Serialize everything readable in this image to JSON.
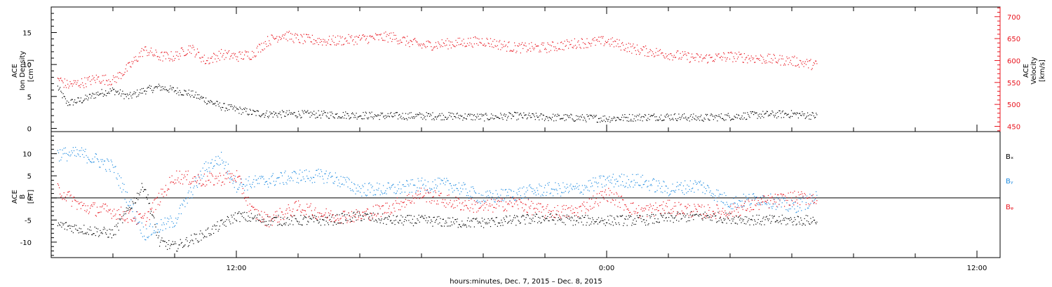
{
  "figure": {
    "xlabel": "hours:minutes, Dec.  7, 2015 – Dec.  8, 2015",
    "x_ticks": [
      {
        "t": 12,
        "label": "12:00"
      },
      {
        "t": 24,
        "label": "0:00"
      },
      {
        "t": 36,
        "label": "12:00"
      }
    ],
    "x_minor_step_hours": 2,
    "xlim_hours": [
      6,
      36.75
    ]
  },
  "colors": {
    "black": "#000000",
    "red": "#e8141e",
    "blue": "#1e8be0"
  },
  "chart_data": [
    {
      "type": "scatter",
      "panel": "top",
      "left_axis_label": [
        "ACE",
        "Ion Density",
        "[cm⁻³]"
      ],
      "right_axis_label": [
        "ACE",
        "Velocity",
        "[km/s]"
      ],
      "left_ticks": [
        0,
        5,
        10,
        15
      ],
      "right_ticks": [
        450,
        500,
        550,
        600,
        650,
        700
      ],
      "ylim_left": [
        -0.5,
        19
      ],
      "ylim_right": [
        438,
        722
      ],
      "series": [
        {
          "color": "#000000",
          "axis": "left",
          "x_hours": [
            6.2,
            6.5,
            7.0,
            7.5,
            8.0,
            8.5,
            9.0,
            9.5,
            10.0,
            10.5,
            11.0,
            11.5,
            12.0,
            12.5,
            13.0,
            14.0,
            15.0,
            16.0,
            17.0,
            18.0,
            19.0,
            20.0,
            21.0,
            22.0,
            23.0,
            24.0,
            25.0,
            26.0,
            27.0,
            28.0,
            29.0,
            30.0,
            30.8
          ],
          "values": [
            6.5,
            4.0,
            4.5,
            5.5,
            6.0,
            5.0,
            6.0,
            6.5,
            6.0,
            5.5,
            4.5,
            3.5,
            3.0,
            2.5,
            2.3,
            2.3,
            2.2,
            2.1,
            2.0,
            2.0,
            2.0,
            1.8,
            2.0,
            1.8,
            1.7,
            1.6,
            1.8,
            1.9,
            1.7,
            1.9,
            2.2,
            2.3,
            2.0
          ]
        },
        {
          "color": "#e8141e",
          "axis": "right",
          "x_hours": [
            6.2,
            6.5,
            7.0,
            7.5,
            8.0,
            8.5,
            9.0,
            9.5,
            10.0,
            10.5,
            11.0,
            11.5,
            12.0,
            12.5,
            13.0,
            13.5,
            14.0,
            15.0,
            16.0,
            17.0,
            18.0,
            19.0,
            20.0,
            21.0,
            22.0,
            23.0,
            24.0,
            25.0,
            26.0,
            27.0,
            28.0,
            29.0,
            30.0,
            30.8
          ],
          "values": [
            560,
            545,
            550,
            560,
            555,
            585,
            625,
            610,
            610,
            630,
            600,
            615,
            610,
            615,
            645,
            660,
            650,
            645,
            650,
            655,
            635,
            640,
            645,
            630,
            630,
            640,
            645,
            625,
            615,
            605,
            610,
            605,
            600,
            590
          ]
        }
      ]
    },
    {
      "type": "scatter",
      "panel": "bottom",
      "left_axis_label": [
        "ACE",
        "B",
        "[nT]"
      ],
      "left_ticks": [
        -10,
        -5,
        0,
        5,
        10
      ],
      "ylim": [
        -13.5,
        15
      ],
      "series": [
        {
          "name": "Bₓ",
          "color": "#000000",
          "x_hours": [
            6.2,
            7.0,
            8.0,
            9.0,
            9.5,
            10.0,
            11.0,
            11.5,
            12.0,
            13.0,
            14.0,
            15.0,
            16.0,
            17.0,
            18.0,
            19.0,
            20.0,
            21.0,
            22.0,
            23.0,
            24.0,
            25.0,
            26.0,
            27.0,
            28.0,
            29.0,
            30.0,
            30.8
          ],
          "values": [
            -6,
            -7,
            -8,
            3,
            -10,
            -11,
            -8,
            -6,
            -4,
            -5,
            -5,
            -5,
            -4,
            -5,
            -5,
            -5.5,
            -5.5,
            -5,
            -4.5,
            -5,
            -5,
            -5,
            -4.5,
            -4,
            -4.5,
            -5,
            -5,
            -5
          ]
        },
        {
          "name": "Bᵧ",
          "color": "#1e8be0",
          "x_hours": [
            6.2,
            7.0,
            8.0,
            9.0,
            10.0,
            11.0,
            11.5,
            12.0,
            13.0,
            14.0,
            15.0,
            16.0,
            17.0,
            18.0,
            19.0,
            20.0,
            21.0,
            22.0,
            23.0,
            24.0,
            25.0,
            26.0,
            27.0,
            28.0,
            29.0,
            30.0,
            30.8
          ],
          "values": [
            10,
            10,
            7,
            -8,
            -5,
            7,
            9,
            3,
            4,
            5,
            5,
            2,
            2,
            3,
            3,
            0,
            1,
            2,
            2,
            4,
            4,
            2,
            3,
            -1,
            0,
            -2,
            0
          ]
        },
        {
          "name": "Bᵩ",
          "color": "#e8141e",
          "x_hours": [
            6.2,
            7.0,
            8.0,
            9.0,
            10.0,
            11.0,
            12.0,
            12.5,
            13.0,
            14.0,
            15.0,
            16.0,
            17.0,
            18.0,
            19.0,
            20.0,
            21.0,
            22.0,
            23.0,
            24.0,
            25.0,
            26.0,
            27.0,
            28.0,
            29.0,
            30.0,
            30.8
          ],
          "values": [
            2,
            -2,
            -3,
            -5,
            5,
            4,
            5,
            -3,
            -5,
            -2,
            -4,
            -4,
            -2,
            1,
            -1,
            -2,
            -1,
            -3,
            -3,
            1,
            -3,
            -2,
            -3,
            -3,
            -1,
            0,
            0
          ]
        }
      ],
      "legend": [
        {
          "text": "Bₓ",
          "color": "#000000"
        },
        {
          "text": "Bᵧ",
          "color": "#1e8be0"
        },
        {
          "text": "Bᵩ",
          "color": "#e8141e"
        }
      ]
    }
  ]
}
